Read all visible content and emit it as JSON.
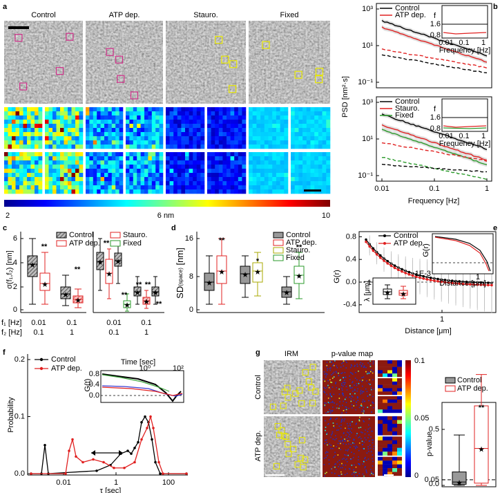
{
  "panel_a": {
    "label": "a",
    "columns": [
      "Control",
      "ATP dep.",
      "Stauro.",
      "Fixed"
    ],
    "colorbar_labels": [
      "2",
      "6 nm",
      "10"
    ]
  },
  "panel_b": {
    "label": "b",
    "ylabel": "PSD [nm²·s]",
    "xlabel": "Frequency [Hz]",
    "yticks_top": [
      "10³",
      "10¹",
      "10⁻¹"
    ],
    "yticks_bottom": [
      "10³",
      "10¹",
      "10⁻¹"
    ],
    "xticks": [
      "0.01",
      "0.1",
      "1"
    ],
    "legend_top": [
      "Control",
      "ATP dep."
    ],
    "legend_bottom": [
      "Control",
      "Stauro.",
      "Fixed"
    ],
    "inset_top": {
      "ylabel": "f",
      "yticks": [
        "1.6",
        "0.8"
      ],
      "xticks": [
        "0.01",
        "0.1",
        "1"
      ],
      "xlabel": "Frequency [Hz]"
    },
    "inset_bottom": {
      "ylabel": "f",
      "yticks": [
        "1.6",
        "0.8"
      ],
      "xticks": [
        "0.01",
        "0.1",
        "1"
      ],
      "xlabel": "Frequency [Hz]"
    }
  },
  "panel_c": {
    "label": "c",
    "ylabel": "σ(f₁,f₂) [nm]",
    "yticks": [
      "6",
      "4",
      "2",
      "0"
    ],
    "legend": [
      "Control",
      "ATP dep.",
      "Stauro.",
      "Fixed"
    ],
    "f1_label": "f₁ [Hz]",
    "f2_label": "f₂ [Hz]",
    "f1_values": [
      "0.01",
      "0.1",
      "0.01",
      "0.1"
    ],
    "f2_values": [
      "0.1",
      "1",
      "0.1",
      "1"
    ],
    "significance": [
      "**",
      "**",
      "**",
      "**",
      "**",
      "**",
      "**"
    ]
  },
  "panel_d": {
    "label": "d",
    "ylabel": "SD",
    "ylabel_sub": "(space)",
    "ylabel_unit": "[nm]",
    "yticks": [
      "16",
      "8",
      "0"
    ],
    "legend": [
      "Control",
      "ATP dep.",
      "Stauro.",
      "Fixed"
    ],
    "significance": [
      "**",
      "*",
      "**"
    ]
  },
  "panel_e": {
    "label": "e",
    "ylabel": "G(r)",
    "yticks": [
      "0.8",
      "0.4",
      "0.0",
      "-0.4"
    ],
    "xticks": [
      "1"
    ],
    "xlabel": "Distance [μm]",
    "legend": [
      "Control",
      "ATP dep."
    ],
    "inset_curve": {
      "ylabel": "G(r)",
      "ytick": "1E-3",
      "xtick": "1",
      "xlabel": "Distance [μm]"
    },
    "inset_box": {
      "ylabel": "λ [μm]",
      "ytick": "1"
    }
  },
  "panel_f": {
    "label": "f",
    "ylabel": "Probability",
    "yticks": [
      "0.2",
      "0.1",
      "0.0"
    ],
    "xticks": [
      "0.01",
      "1",
      "100"
    ],
    "xlabel": "τ [sec]",
    "legend": [
      "Control",
      "ATP dep."
    ],
    "inset": {
      "xlabel": "Time [sec]",
      "xticks": [
        "10⁰",
        "10²"
      ],
      "ylabel": "G(t)",
      "yticks": [
        "0.8",
        "0.4",
        "0.0"
      ]
    }
  },
  "panel_g": {
    "label": "g",
    "columns": [
      "IRM",
      "p-value map"
    ],
    "rows": [
      "Control",
      "ATP dep."
    ],
    "colorbar_labels": [
      "0.1",
      "0.05",
      "0"
    ],
    "ylabel": "p-value",
    "yticks": [
      "0.5",
      "0.05",
      "0.0"
    ],
    "legend": [
      "Control",
      "ATP dep."
    ],
    "significance": "**"
  }
}
